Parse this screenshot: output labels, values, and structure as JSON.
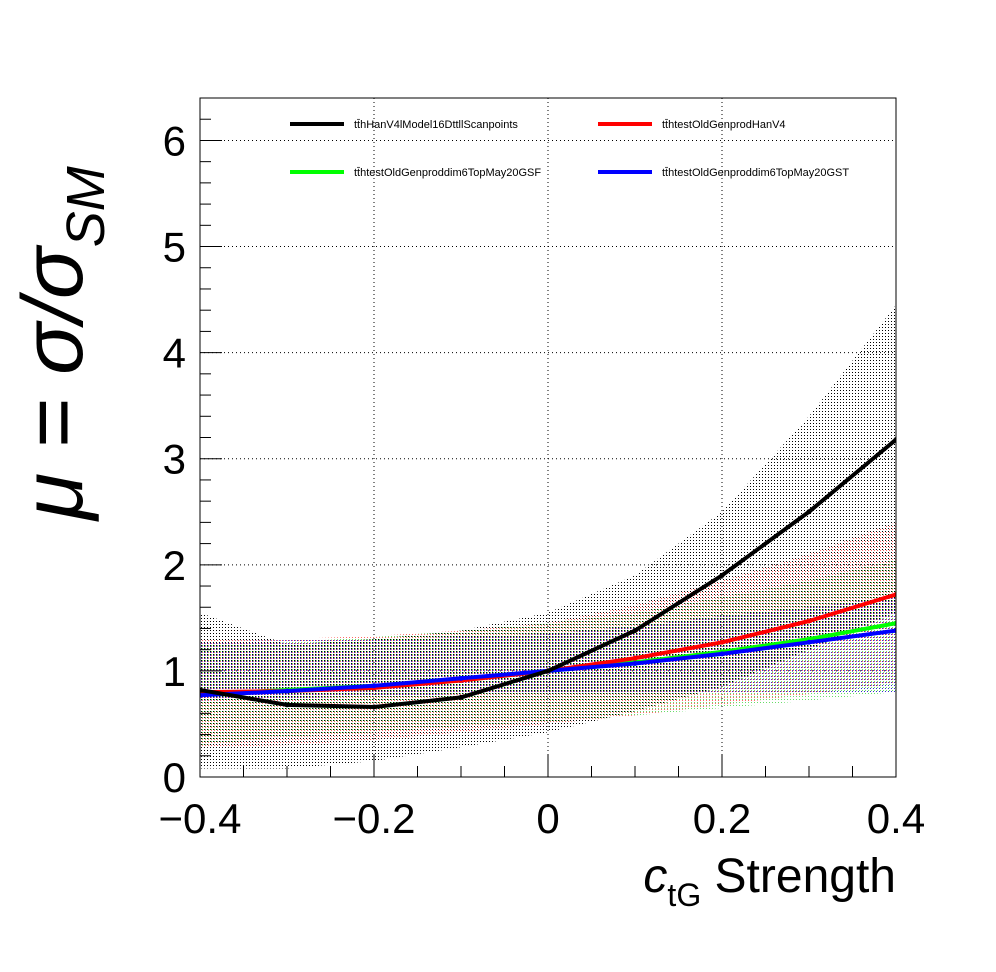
{
  "chart_data": {
    "type": "line",
    "xlabel": {
      "main": "c",
      "subscript": "tG",
      "rest": " Strength"
    },
    "ylabel": {
      "prefix": "μ = σ/σ",
      "subscript": "SM"
    },
    "xlim": [
      -0.4,
      0.4
    ],
    "ylim": [
      0,
      6.4
    ],
    "xticks": [
      -0.4,
      -0.2,
      0,
      0.2,
      0.4
    ],
    "xtick_labels": [
      "−0.4",
      "−0.2",
      "0",
      "0.2",
      "0.4"
    ],
    "yticks": [
      0,
      1,
      2,
      3,
      4,
      5,
      6
    ],
    "ytick_labels": [
      "0",
      "1",
      "2",
      "3",
      "4",
      "5",
      "6"
    ],
    "grid": true,
    "legend_position": "top",
    "x": [
      -0.4,
      -0.3,
      -0.2,
      -0.1,
      0,
      0.1,
      0.2,
      0.3,
      0.4
    ],
    "series": [
      {
        "name": "tt̄hHanV4lModel16DttllScanpoints",
        "color": "#000000",
        "values": [
          0.82,
          0.68,
          0.66,
          0.75,
          1.0,
          1.38,
          1.9,
          2.5,
          3.18
        ],
        "band_lower": [
          0.08,
          0.08,
          0.15,
          0.28,
          0.42,
          0.62,
          0.85,
          1.2,
          1.55
        ],
        "band_upper": [
          1.55,
          1.25,
          1.3,
          1.38,
          1.55,
          1.9,
          2.5,
          3.4,
          4.45
        ]
      },
      {
        "name": "tt̄htestOldGenprodHanV4",
        "color": "#ff0000",
        "values": [
          0.8,
          0.81,
          0.84,
          0.91,
          1.0,
          1.12,
          1.27,
          1.47,
          1.72
        ],
        "band_lower": [
          0.28,
          0.3,
          0.35,
          0.42,
          0.5,
          0.58,
          0.68,
          0.78,
          0.88
        ],
        "band_upper": [
          1.3,
          1.3,
          1.33,
          1.38,
          1.45,
          1.62,
          1.85,
          2.1,
          2.4
        ]
      },
      {
        "name": "tt̄htestOldGenproddim6TopMay20GSF",
        "color": "#00ff00",
        "values": [
          0.78,
          0.82,
          0.86,
          0.92,
          1.0,
          1.08,
          1.18,
          1.3,
          1.45
        ],
        "band_lower": [
          0.3,
          0.38,
          0.42,
          0.48,
          0.52,
          0.58,
          0.65,
          0.72,
          0.8
        ],
        "band_upper": [
          1.25,
          1.27,
          1.32,
          1.38,
          1.45,
          1.55,
          1.7,
          1.85,
          2.05
        ]
      },
      {
        "name": "tt̄htestOldGenproddim6TopMay20GST",
        "color": "#0000ff",
        "values": [
          0.77,
          0.81,
          0.86,
          0.93,
          1.0,
          1.07,
          1.16,
          1.27,
          1.38
        ],
        "band_lower": [
          0.72,
          0.74,
          0.76,
          0.78,
          0.8,
          0.78,
          0.8,
          0.8,
          0.8
        ],
        "band_upper": [
          1.28,
          1.29,
          1.3,
          1.32,
          1.35,
          1.42,
          1.52,
          1.6,
          1.7
        ]
      }
    ]
  }
}
